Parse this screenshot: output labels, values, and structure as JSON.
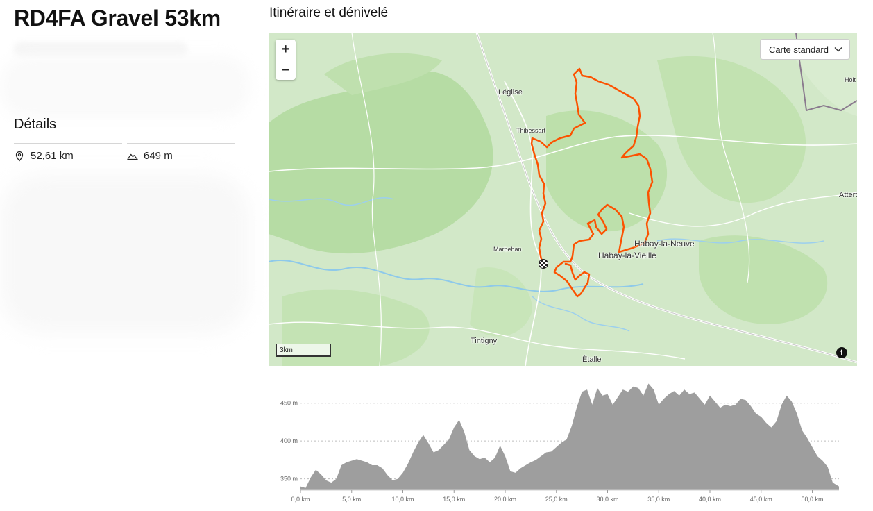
{
  "route": {
    "title": "RD4FA Gravel 53km",
    "details_heading": "Détails",
    "distance": "52,61 km",
    "elevation_gain": "649 m"
  },
  "section_title": "Itinéraire et dénivelé",
  "map": {
    "zoom_in": "+",
    "zoom_out": "−",
    "map_type": "Carte standard",
    "scale_label": "3km",
    "info_label": "i",
    "places": [
      "Léglise",
      "Thibessart",
      "Marbehan",
      "Habay-la-Neuve",
      "Habay-la-Vieille",
      "Tintigny",
      "Étalle",
      "Attert",
      "Holt"
    ],
    "route_color": "#fc5200",
    "icons": [
      "plus-icon",
      "minus-icon",
      "chevron-down-icon",
      "checkered-flag-icon",
      "info-icon",
      "location-pin-icon",
      "mountain-icon"
    ]
  },
  "chart_data": {
    "type": "area",
    "x_unit": "km",
    "y_unit": "m",
    "xlim": [
      0,
      52.61
    ],
    "ylim": [
      335,
      480
    ],
    "x_ticks": [
      "0,0 km",
      "5,0 km",
      "10,0 km",
      "15,0 km",
      "20,0 km",
      "25,0 km",
      "30,0 km",
      "35,0 km",
      "40,0 km",
      "45,0 km",
      "50,0 km"
    ],
    "x_tick_values": [
      0,
      5,
      10,
      15,
      20,
      25,
      30,
      35,
      40,
      45,
      50
    ],
    "y_ticks": [
      "350 m",
      "400 m",
      "450 m"
    ],
    "y_tick_values": [
      350,
      400,
      450
    ],
    "grid": true,
    "fill_color": "#9e9e9e",
    "x": [
      0,
      0.5,
      1,
      1.5,
      2,
      2.5,
      3,
      3.5,
      4,
      4.5,
      5,
      5.5,
      6,
      6.5,
      7,
      7.5,
      8,
      8.5,
      9,
      9.5,
      10,
      10.5,
      11,
      11.5,
      12,
      12.5,
      13,
      13.5,
      14,
      14.5,
      15,
      15.5,
      16,
      16.5,
      17,
      17.5,
      18,
      18.5,
      19,
      19.5,
      20,
      20.5,
      21,
      21.5,
      22,
      22.5,
      23,
      23.5,
      24,
      24.5,
      25,
      25.5,
      26,
      26.5,
      27,
      27.5,
      28,
      28.5,
      29,
      29.5,
      30,
      30.5,
      31,
      31.5,
      32,
      32.5,
      33,
      33.5,
      34,
      34.5,
      35,
      35.5,
      36,
      36.5,
      37,
      37.5,
      38,
      38.5,
      39,
      39.5,
      40,
      40.5,
      41,
      41.5,
      42,
      42.5,
      43,
      43.5,
      44,
      44.5,
      45,
      45.5,
      46,
      46.5,
      47,
      47.5,
      48,
      48.5,
      49,
      49.5,
      50,
      50.5,
      51,
      51.5,
      52,
      52.61
    ],
    "y": [
      340,
      338,
      352,
      362,
      356,
      348,
      345,
      350,
      368,
      372,
      374,
      376,
      374,
      372,
      368,
      368,
      364,
      355,
      348,
      350,
      358,
      370,
      385,
      398,
      408,
      397,
      385,
      388,
      395,
      402,
      418,
      428,
      412,
      388,
      380,
      376,
      378,
      372,
      378,
      394,
      380,
      360,
      358,
      364,
      368,
      372,
      375,
      380,
      385,
      386,
      392,
      398,
      402,
      420,
      445,
      465,
      468,
      448,
      470,
      460,
      462,
      448,
      458,
      468,
      465,
      472,
      470,
      460,
      476,
      468,
      448,
      456,
      462,
      466,
      460,
      468,
      462,
      464,
      456,
      448,
      460,
      452,
      444,
      448,
      446,
      448,
      456,
      454,
      446,
      436,
      432,
      424,
      418,
      426,
      448,
      460,
      452,
      436,
      414,
      404,
      392,
      380,
      374,
      366,
      345,
      340
    ]
  }
}
